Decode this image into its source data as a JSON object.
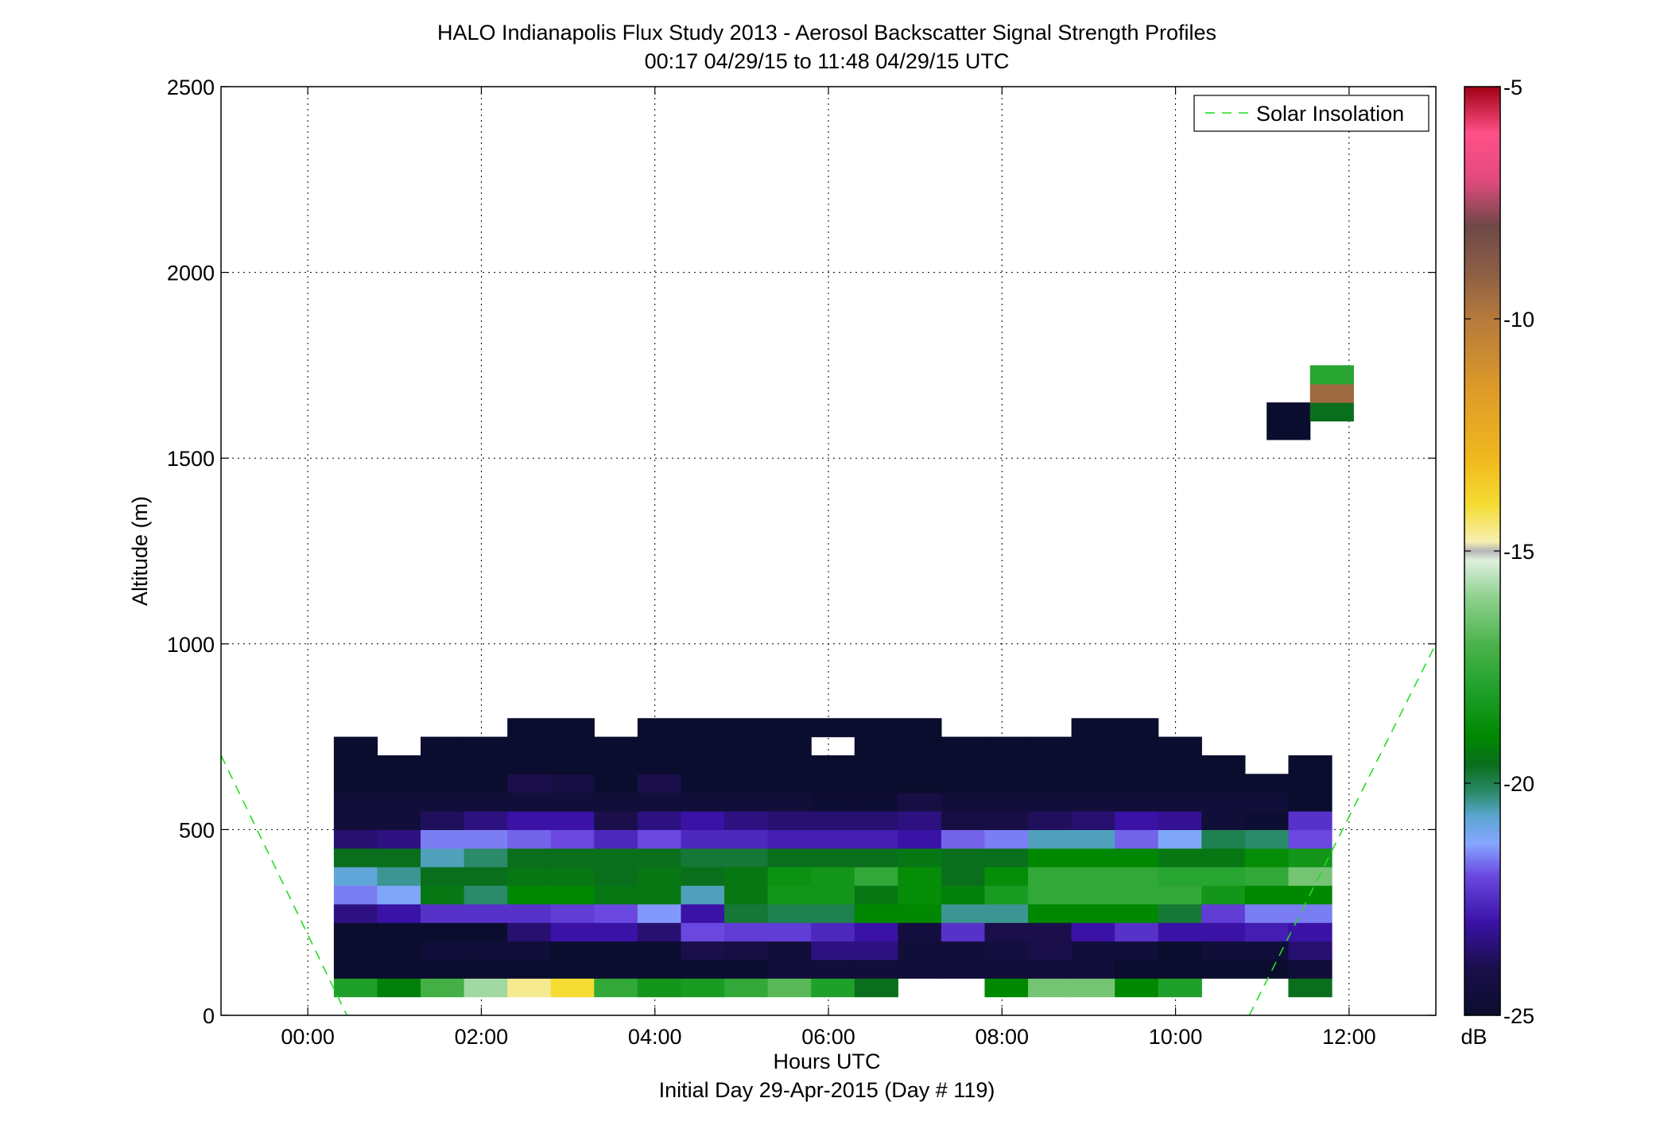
{
  "chart_data": {
    "type": "heatmap",
    "title": "HALO Indianapolis Flux Study 2013 - Aerosol Backscatter Signal Strength Profiles",
    "subtitle": "00:17 04/29/15 to 11:48 04/29/15  UTC",
    "xlabel": "Hours UTC",
    "xlabel2": "Initial Day 29-Apr-2015 (Day # 119)",
    "ylabel": "Altitude (m)",
    "xlim": [
      -1.0,
      13.0
    ],
    "ylim": [
      0,
      2500
    ],
    "grid": true,
    "x_ticks": [
      0,
      2,
      4,
      6,
      8,
      10,
      12
    ],
    "x_tick_labels": [
      "00:00",
      "02:00",
      "04:00",
      "06:00",
      "08:00",
      "10:00",
      "12:00"
    ],
    "y_ticks": [
      0,
      500,
      1000,
      1500,
      2000,
      2500
    ],
    "y_tick_labels": [
      "0",
      "500",
      "1000",
      "1500",
      "2000",
      "2500"
    ],
    "colorbar": {
      "label": "dB",
      "ticks": [
        -5,
        -10,
        -15,
        -20,
        -25
      ],
      "tick_labels": [
        "-5",
        "-10",
        "-15",
        "-20",
        "-25"
      ],
      "range": [
        -25,
        -5
      ]
    },
    "legend": {
      "position": "top-right",
      "entries": [
        "Solar Insolation"
      ]
    },
    "solar_insolation": [
      {
        "hour": -1.0,
        "alt": 700
      },
      {
        "hour": 0.45,
        "alt": 0
      },
      {
        "hour": 10.85,
        "alt": 0
      },
      {
        "hour": 13.0,
        "alt": 1000
      }
    ],
    "x_start_hour": 0.3,
    "time_step_hours": 0.5,
    "altitude_start_m": 50,
    "altitude_step_m": 50,
    "cells_db": [
      [
        -18.0,
        -19.2,
        -17.2,
        -15.8,
        -14.6,
        -14.0,
        -17.6,
        -18.4,
        -18.2,
        -17.6,
        -16.8,
        -18.0,
        -19.6,
        null,
        null,
        -19.0,
        -16.4,
        -16.4,
        -19.0,
        -18.0,
        null,
        null,
        -19.6
      ],
      [
        -25.0,
        -25.0,
        -25.0,
        -25.0,
        -25.0,
        -25.0,
        -25.0,
        -25.0,
        -25.0,
        -25.0,
        -24.6,
        -24.6,
        -24.6,
        -24.6,
        -24.6,
        -24.6,
        -24.6,
        -24.6,
        -25.0,
        -25.0,
        -25.0,
        -25.0,
        -24.6
      ],
      [
        -25.0,
        -25.0,
        -24.6,
        -24.6,
        -24.6,
        -25.0,
        -25.0,
        -25.0,
        -24.0,
        -24.2,
        -24.6,
        -23.4,
        -23.4,
        -24.6,
        -24.6,
        -24.4,
        -24.0,
        -24.6,
        -24.6,
        -25.0,
        -24.6,
        -24.6,
        -23.6
      ],
      [
        -25.0,
        -25.0,
        -25.0,
        -25.0,
        -23.6,
        -23.0,
        -23.0,
        -23.6,
        -22.0,
        -22.2,
        -22.2,
        -22.6,
        -23.0,
        -24.4,
        -22.4,
        -24.0,
        -24.0,
        -23.0,
        -22.4,
        -23.0,
        -23.0,
        -22.8,
        -23.0
      ],
      [
        -23.4,
        -23.0,
        -22.4,
        -22.4,
        -22.4,
        -22.2,
        -22.0,
        -21.4,
        -23.0,
        -19.8,
        -20.0,
        -20.0,
        -19.0,
        -19.0,
        -20.4,
        -20.4,
        -19.0,
        -19.0,
        -19.0,
        -19.8,
        -22.2,
        -21.6,
        -21.6
      ],
      [
        -21.6,
        -21.2,
        -19.4,
        -20.2,
        -19.0,
        -19.0,
        -19.4,
        -19.4,
        -20.6,
        -19.4,
        -18.4,
        -18.4,
        -19.4,
        -18.8,
        -19.2,
        -18.2,
        -17.6,
        -17.6,
        -17.6,
        -17.6,
        -18.4,
        -19.0,
        -19.0
      ],
      [
        -20.8,
        -20.4,
        -19.6,
        -19.6,
        -19.4,
        -19.4,
        -19.6,
        -19.4,
        -19.6,
        -19.4,
        -18.6,
        -18.4,
        -17.6,
        -18.8,
        -19.6,
        -18.8,
        -17.6,
        -17.6,
        -17.6,
        -17.8,
        -17.8,
        -17.6,
        -16.4
      ],
      [
        -19.6,
        -19.6,
        -20.6,
        -20.2,
        -19.6,
        -19.6,
        -19.6,
        -19.6,
        -19.8,
        -19.8,
        -19.6,
        -19.6,
        -19.6,
        -19.4,
        -19.6,
        -19.6,
        -19.0,
        -19.0,
        -19.0,
        -19.4,
        -19.4,
        -18.8,
        -18.4
      ],
      [
        -23.6,
        -23.4,
        -21.6,
        -21.6,
        -21.8,
        -22.0,
        -22.6,
        -22.0,
        -22.6,
        -22.6,
        -22.8,
        -22.8,
        -22.8,
        -23.0,
        -21.8,
        -21.6,
        -20.6,
        -20.6,
        -21.8,
        -21.2,
        -20.0,
        -20.2,
        -22.0
      ],
      [
        -24.6,
        -24.6,
        -23.8,
        -23.4,
        -23.0,
        -23.0,
        -24.0,
        -23.4,
        -23.0,
        -23.4,
        -23.6,
        -23.6,
        -23.6,
        -23.4,
        -24.2,
        -24.2,
        -23.8,
        -23.6,
        -23.0,
        -23.2,
        -24.6,
        -24.8,
        -22.4
      ],
      [
        -24.6,
        -24.6,
        -24.6,
        -24.6,
        -24.6,
        -24.6,
        -24.6,
        -24.6,
        -24.6,
        -24.6,
        -24.6,
        -24.8,
        -24.8,
        -24.2,
        -24.6,
        -24.6,
        -24.6,
        -24.6,
        -24.6,
        -24.6,
        -24.6,
        -24.6,
        -25.0
      ],
      [
        -25.0,
        -25.0,
        -25.0,
        -25.0,
        -24.0,
        -24.2,
        -25.0,
        -24.0,
        -25.0,
        -25.0,
        -25.0,
        -25.0,
        -25.0,
        -25.0,
        -25.0,
        -25.0,
        -25.0,
        -25.0,
        -25.0,
        -25.0,
        -25.0,
        -25.0,
        -25.0
      ],
      [
        -25.0,
        -25.0,
        -25.0,
        -25.0,
        -25.0,
        -25.0,
        -25.0,
        -25.0,
        -25.0,
        -25.0,
        -25.0,
        -25.0,
        -25.0,
        -25.0,
        -25.0,
        -25.0,
        -25.0,
        -25.0,
        -25.0,
        -25.0,
        -25.0,
        null,
        -25.0
      ],
      [
        -25.0,
        null,
        -25.0,
        -25.0,
        -25.0,
        -25.0,
        -25.0,
        -25.0,
        -25.0,
        -25.0,
        -25.0,
        null,
        -25.0,
        -25.0,
        -25.0,
        -25.0,
        -25.0,
        -25.0,
        -25.0,
        -25.0,
        null,
        null,
        null
      ],
      [
        null,
        null,
        null,
        null,
        -25.0,
        -25.0,
        null,
        -25.0,
        -25.0,
        -25.0,
        -25.0,
        -25.0,
        -25.0,
        -25.0,
        null,
        null,
        null,
        -25.0,
        -25.0,
        null,
        null,
        null,
        null
      ]
    ],
    "isolated_cells": [
      {
        "hour": 11.3,
        "alt_low": 1550,
        "db": -25.0
      },
      {
        "hour": 11.3,
        "alt_low": 1600,
        "db": -25.0
      },
      {
        "hour": 11.8,
        "alt_low": 1600,
        "db": -19.6
      },
      {
        "hour": 11.8,
        "alt_low": 1650,
        "db": -9.4
      },
      {
        "hour": 11.8,
        "alt_low": 1700,
        "db": -17.8
      }
    ]
  }
}
